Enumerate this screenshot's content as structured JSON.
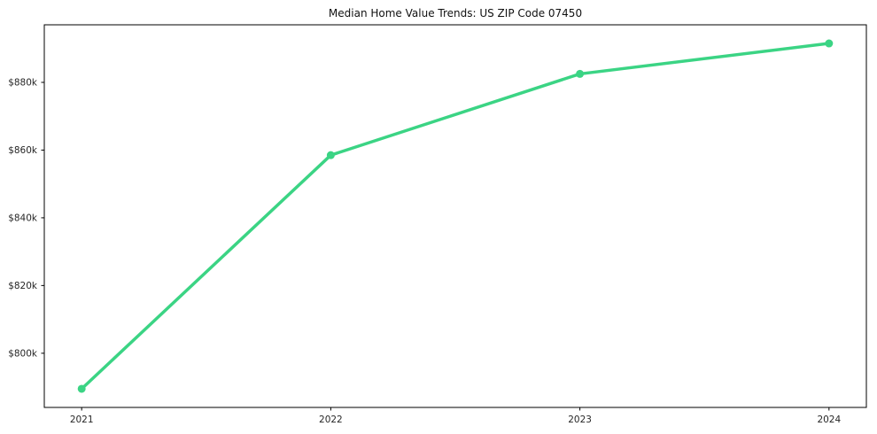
{
  "figure": {
    "background": "#ffffff",
    "axes_edge_color": "#000000",
    "text_color": "#262626"
  },
  "chart_data": {
    "type": "line",
    "title": "Median Home Value Trends: US ZIP Code 07450",
    "x": [
      2021,
      2022,
      2023,
      2024
    ],
    "xtick_labels": [
      "2021",
      "2022",
      "2023",
      "2024"
    ],
    "series": [
      {
        "name": "Median Home Value",
        "values": [
          789500,
          858500,
          882500,
          891500
        ],
        "color": "#3bd484",
        "marker": "circle"
      }
    ],
    "yticks": [
      800000,
      820000,
      840000,
      860000,
      880000
    ],
    "ytick_labels": [
      "$800k",
      "$820k",
      "$840k",
      "$860k",
      "$880k"
    ],
    "xlim": [
      2020.85,
      2024.15
    ],
    "ylim": [
      784000,
      897000
    ],
    "xlabel": "",
    "ylabel": "",
    "grid": false,
    "legend": false
  }
}
